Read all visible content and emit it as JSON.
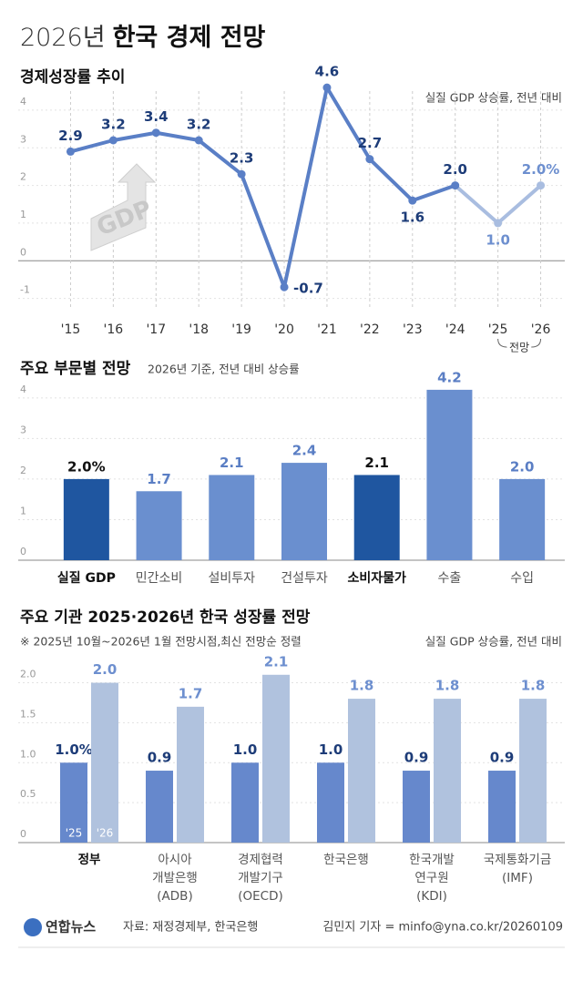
{
  "header": {
    "title_year": "2026년",
    "title": "한국 경제 전망"
  },
  "chart_data": [
    {
      "type": "line",
      "title": "경제성장률 추이",
      "subtitle": "실질 GDP 상승률, 전년 대비",
      "icon_label": "GDP",
      "categories": [
        "'15",
        "'16",
        "'17",
        "'18",
        "'19",
        "'20",
        "'21",
        "'22",
        "'23",
        "'24",
        "'25",
        "'26"
      ],
      "values": [
        2.9,
        3.2,
        3.4,
        3.2,
        2.3,
        -0.7,
        4.6,
        2.7,
        1.6,
        2.0,
        1.0,
        2.0
      ],
      "value_labels": [
        "2.9",
        "3.2",
        "3.4",
        "3.2",
        "2.3",
        "-0.7",
        "4.6",
        "2.7",
        "1.6",
        "2.0",
        "1.0",
        "2.0%"
      ],
      "color": "#5a7fc6",
      "point_colors": [
        "#5a7fc6",
        "#5a7fc6",
        "#5a7fc6",
        "#5a7fc6",
        "#5a7fc6",
        "#5a7fc6",
        "#5a7fc6",
        "#5a7fc6",
        "#5a7fc6",
        "#5a7fc6",
        "#a9bde0",
        "#a9bde0"
      ],
      "annotation": "전망",
      "ylim": [
        -1.3,
        4.7
      ],
      "yticks": [
        -1,
        0,
        1,
        2,
        3,
        4
      ],
      "grid": true
    },
    {
      "type": "bar",
      "title": "주요 부문별 전망",
      "subtitle": "2026년 기준, 전년 대비 상승률",
      "categories": [
        "실질 GDP",
        "민간소비",
        "설비투자",
        "건설투자",
        "소비자물가",
        "수출",
        "수입"
      ],
      "values": [
        2.0,
        1.7,
        2.1,
        2.4,
        2.1,
        4.2,
        2.0
      ],
      "value_labels": [
        "2.0%",
        "1.7",
        "2.1",
        "2.4",
        "2.1",
        "4.2",
        "2.0"
      ],
      "color": "#6a8fcf",
      "colors": [
        "#1f56a0",
        "#6a8fcf",
        "#6a8fcf",
        "#6a8fcf",
        "#1f56a0",
        "#6a8fcf",
        "#6a8fcf"
      ],
      "ylim": [
        0,
        4.4
      ],
      "yticks": [
        0,
        1,
        2,
        3,
        4
      ],
      "grid": true
    },
    {
      "type": "grouped-bar",
      "title": "주요 기관 2025·2026년 한국 성장률 전망",
      "note": "※ 2025년 10월~2026년 1월 전망시점,최신 전망순 정렬",
      "subtitle": "실질 GDP 상승률, 전년 대비",
      "categories": [
        "정부",
        "아시아\n개발은행\n(ADB)",
        "경제협력\n개발기구\n(OECD)",
        "한국은행",
        "한국개발\n연구원\n(KDI)",
        "국제통화기금\n(IMF)"
      ],
      "series": [
        {
          "name": "'25",
          "color": "#6688cc",
          "values": [
            1.0,
            0.9,
            1.0,
            1.0,
            0.9,
            0.9
          ],
          "value_labels": [
            "1.0%",
            "0.9",
            "1.0",
            "1.0",
            "0.9",
            "0.9"
          ]
        },
        {
          "name": "'26",
          "color": "#b0c2de",
          "values": [
            2.0,
            1.7,
            2.1,
            1.8,
            1.8,
            1.8
          ],
          "value_labels": [
            "2.0",
            "1.7",
            "2.1",
            "1.8",
            "1.8",
            "1.8"
          ]
        }
      ],
      "ylim": [
        0,
        2.2
      ],
      "yticks": [
        0,
        0.5,
        {
          "value": 1,
          "label": "1.0"
        },
        1.5,
        {
          "value": 2,
          "label": "2.0"
        }
      ],
      "grid": true
    }
  ],
  "footer": {
    "logo": "연합뉴스",
    "source": "자료: 재정경제부, 한국은행",
    "credit": "김민지 기자 = minfo@yna.co.kr/20260109"
  }
}
